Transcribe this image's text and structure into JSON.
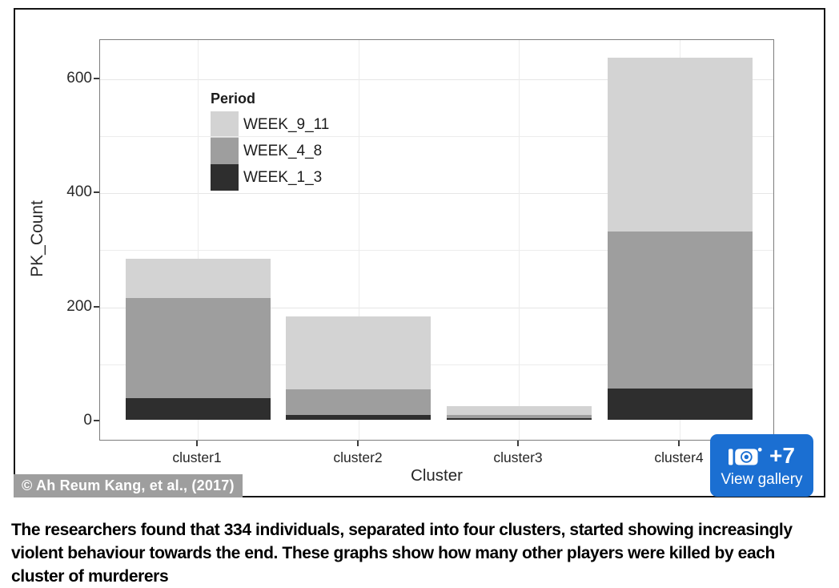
{
  "figure": {
    "credit": "© Ah Reum Kang, et al., (2017)",
    "gallery": {
      "count_label": "+7",
      "action_label": "View gallery",
      "button_color": "#1b6fd2"
    }
  },
  "caption": "The researchers found that 334 individuals, separated into four clusters, started showing increasingly violent behaviour towards the end. These graphs show how many other players were killed by each cluster of murderers",
  "chart_data": {
    "type": "bar",
    "stacked": true,
    "title": "",
    "xlabel": "Cluster",
    "ylabel": "PK_Count",
    "categories": [
      "cluster1",
      "cluster2",
      "cluster3",
      "cluster4"
    ],
    "series": [
      {
        "name": "WEEK_1_3",
        "color": "#2e2e2e",
        "values": [
          38,
          8,
          3,
          55
        ]
      },
      {
        "name": "WEEK_4_8",
        "color": "#9e9e9e",
        "values": [
          175,
          45,
          5,
          275
        ]
      },
      {
        "name": "WEEK_9_11",
        "color": "#d3d3d3",
        "values": [
          70,
          128,
          16,
          305
        ]
      }
    ],
    "totals": [
      283,
      181,
      24,
      635
    ],
    "y_ticks": [
      0,
      200,
      400,
      600
    ],
    "ylim": [
      0,
      660
    ],
    "grid": true,
    "legend": {
      "title": "Period",
      "position": "top-left-inside",
      "order": [
        "WEEK_9_11",
        "WEEK_4_8",
        "WEEK_1_3"
      ]
    }
  }
}
